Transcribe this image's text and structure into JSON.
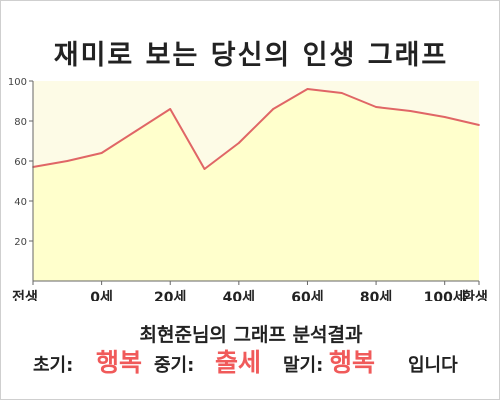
{
  "title": "재미로 보는 당신의 인생 그래프",
  "chart_data": {
    "type": "area",
    "x_ticks": [
      "전생",
      "0세",
      "20세",
      "40세",
      "60세",
      "80세",
      "100세",
      "환생"
    ],
    "x": [
      "전생",
      "0세",
      "10세",
      "20세",
      "30세",
      "40세",
      "50세",
      "60세",
      "70세",
      "80세",
      "90세",
      "100세",
      "110세",
      "환생"
    ],
    "values": [
      57,
      60,
      64,
      75,
      86,
      56,
      69,
      86,
      96,
      94,
      87,
      85,
      82,
      78
    ],
    "ylim": [
      0,
      100
    ],
    "yticks": [
      20,
      40,
      60,
      80,
      100
    ],
    "grid": false,
    "colors": {
      "line": "#e06666",
      "fill": "#ffffcc",
      "plot_bg": "#fdfbe6"
    }
  },
  "result": {
    "heading": "최현준님의 그래프 분석결과",
    "early_label": "초기:",
    "early_value": "행복",
    "middle_label": "중기:",
    "middle_value": "출세",
    "late_label": "말기:",
    "late_value": "행복",
    "suffix": "입니다",
    "highlight_color": "#f05a5a"
  }
}
